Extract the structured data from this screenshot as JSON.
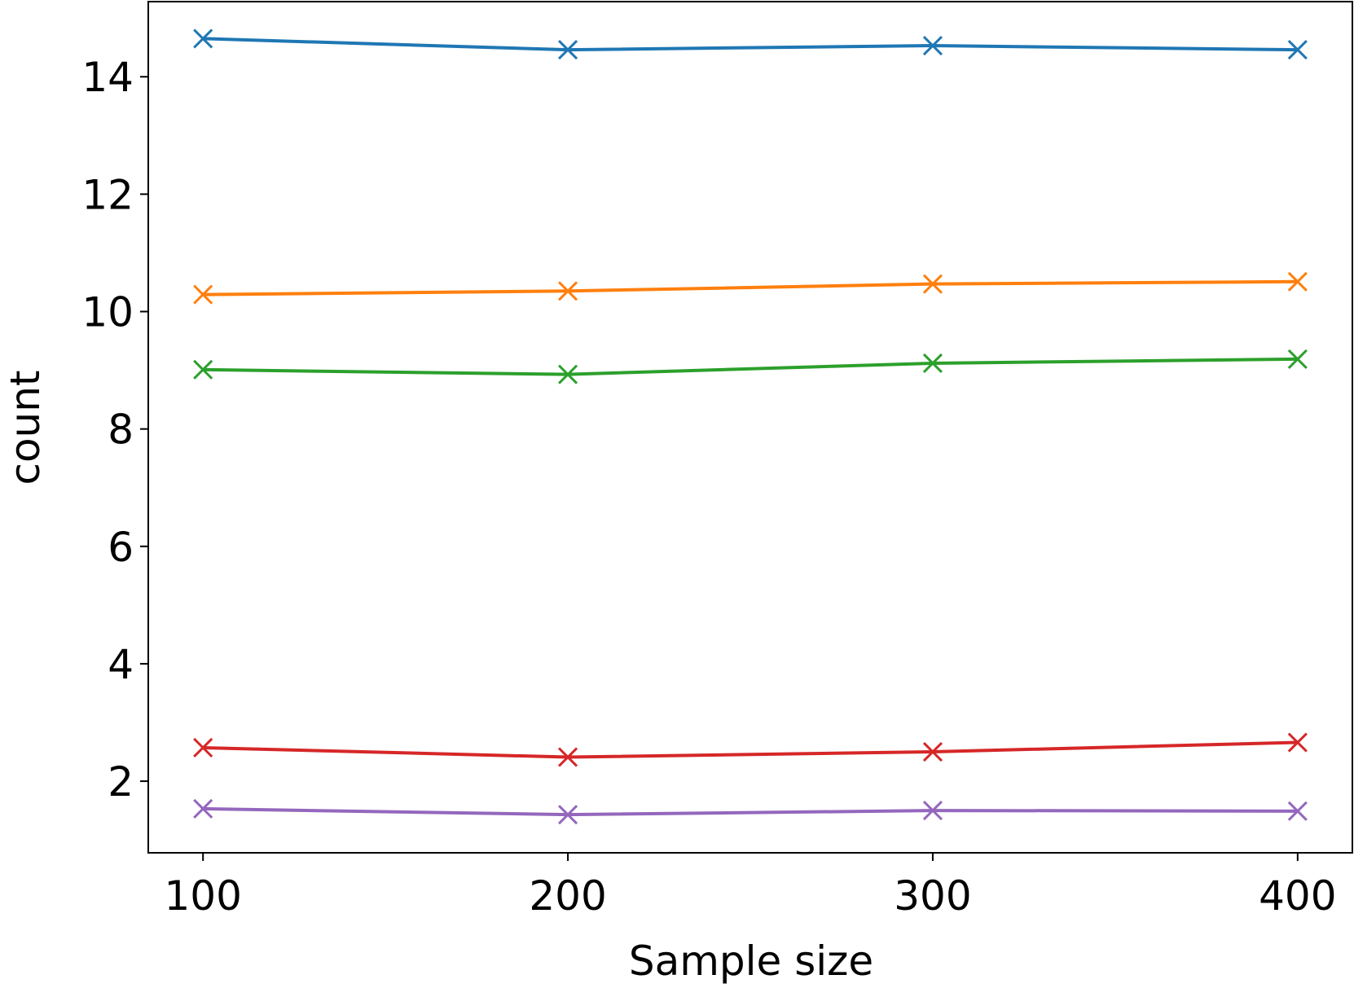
{
  "chart_data": {
    "type": "line",
    "x": [
      100,
      200,
      300,
      400
    ],
    "series": [
      {
        "color": "#1f77b4",
        "values": [
          14.65,
          14.46,
          14.53,
          14.46
        ]
      },
      {
        "color": "#ff7f0e",
        "values": [
          10.29,
          10.35,
          10.47,
          10.51
        ]
      },
      {
        "color": "#2ca02c",
        "values": [
          9.01,
          8.93,
          9.12,
          9.19
        ]
      },
      {
        "color": "#d62728",
        "values": [
          2.57,
          2.41,
          2.5,
          2.66
        ]
      },
      {
        "color": "#9467bd",
        "values": [
          1.53,
          1.43,
          1.5,
          1.49
        ]
      }
    ],
    "xlabel": "Sample size",
    "ylabel": "count",
    "xlim": [
      85,
      415
    ],
    "ylim": [
      0.78,
      15.28
    ],
    "xticks": [
      100,
      200,
      300,
      400
    ],
    "yticks": [
      2,
      4,
      6,
      8,
      10,
      12,
      14
    ],
    "marker": "x"
  }
}
